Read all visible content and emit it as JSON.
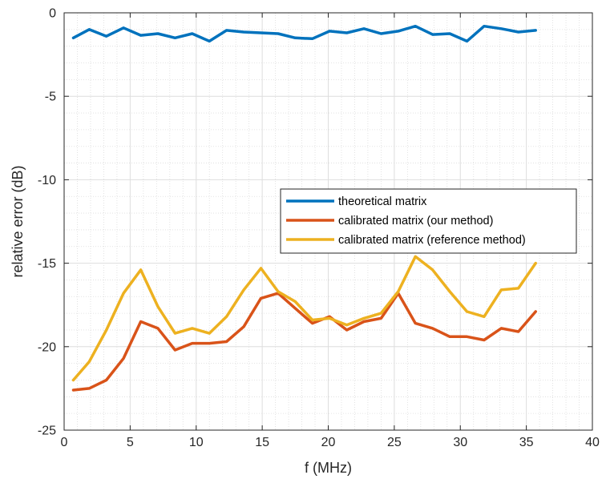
{
  "chart_data": {
    "type": "line",
    "xlabel": "f (MHz)",
    "ylabel": "relative error (dB)",
    "xlim": [
      0,
      40
    ],
    "ylim": [
      -25,
      0
    ],
    "xticks": [
      0,
      5,
      10,
      15,
      20,
      25,
      30,
      35,
      40
    ],
    "yticks": [
      0,
      -5,
      -10,
      -15,
      -20,
      -25
    ],
    "grid": true,
    "minor_grid": true,
    "legend_position": "center-right",
    "x": [
      0.7,
      1.9,
      3.2,
      4.5,
      5.8,
      7.1,
      8.4,
      9.7,
      11.0,
      12.3,
      13.6,
      14.9,
      16.2,
      17.5,
      18.8,
      20.1,
      21.4,
      22.7,
      24.0,
      25.3,
      26.6,
      27.9,
      29.2,
      30.5,
      31.8,
      33.1,
      34.4,
      35.7
    ],
    "series": [
      {
        "name": "theoretical matrix",
        "color": "#0072BD",
        "values": [
          -1.5,
          -1.0,
          -1.4,
          -0.9,
          -1.35,
          -1.25,
          -1.5,
          -1.25,
          -1.7,
          -1.05,
          -1.15,
          -1.2,
          -1.25,
          -1.5,
          -1.55,
          -1.1,
          -1.2,
          -0.95,
          -1.25,
          -1.1,
          -0.8,
          -1.3,
          -1.25,
          -1.7,
          -0.8,
          -0.95,
          -1.15,
          -1.05
        ]
      },
      {
        "name": "calibrated matrix (our method)",
        "color": "#D95319",
        "values": [
          -22.6,
          -22.5,
          -22.0,
          -20.7,
          -18.5,
          -18.9,
          -20.2,
          -19.8,
          -19.8,
          -19.7,
          -18.8,
          -17.1,
          -16.8,
          -17.7,
          -18.6,
          -18.2,
          -19.0,
          -18.5,
          -18.3,
          -16.8,
          -18.6,
          -18.9,
          -19.4,
          -19.4,
          -19.6,
          -18.9,
          -19.1,
          -17.9
        ]
      },
      {
        "name": "calibrated matrix (reference method)",
        "color": "#EDB120",
        "values": [
          -22.0,
          -20.9,
          -19.0,
          -16.8,
          -15.4,
          -17.6,
          -19.2,
          -18.9,
          -19.2,
          -18.2,
          -16.6,
          -15.3,
          -16.7,
          -17.3,
          -18.4,
          -18.3,
          -18.7,
          -18.3,
          -18.0,
          -16.7,
          -14.6,
          -15.4,
          -16.7,
          -17.9,
          -18.2,
          -16.6,
          -16.5,
          -15.0
        ]
      }
    ]
  }
}
